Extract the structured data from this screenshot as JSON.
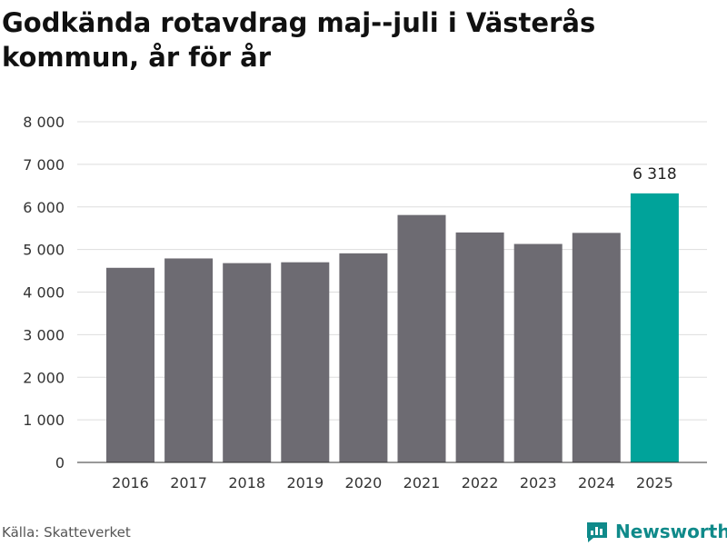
{
  "chart_data": {
    "type": "bar",
    "title": "Godkända rotavdrag maj--juli i Västerås kommun, år för år",
    "xlabel": "",
    "ylabel": "",
    "categories": [
      "2016",
      "2017",
      "2018",
      "2019",
      "2020",
      "2021",
      "2022",
      "2023",
      "2024",
      "2025"
    ],
    "values": [
      4570,
      4790,
      4680,
      4700,
      4910,
      5810,
      5400,
      5130,
      5390,
      6318
    ],
    "ylim": [
      0,
      8000
    ],
    "yticks": [
      0,
      1000,
      2000,
      3000,
      4000,
      5000,
      6000,
      7000,
      8000
    ],
    "ytick_labels": [
      "0",
      "1 000",
      "2 000",
      "3 000",
      "4 000",
      "5 000",
      "6 000",
      "7 000",
      "8 000"
    ],
    "data_labels": [
      null,
      null,
      null,
      null,
      null,
      null,
      null,
      null,
      null,
      "6 318"
    ],
    "grid": true,
    "colors": {
      "bar": "#6d6b72",
      "highlight": "#00a39a",
      "grid": "#dddddd",
      "axis": "#333333"
    },
    "highlight_index": 9
  },
  "source": "Källa: Skatteverket",
  "brand": {
    "name": "Newsworthy",
    "icon": "newsworthy-logo-icon",
    "color": "#0f8a8a"
  }
}
